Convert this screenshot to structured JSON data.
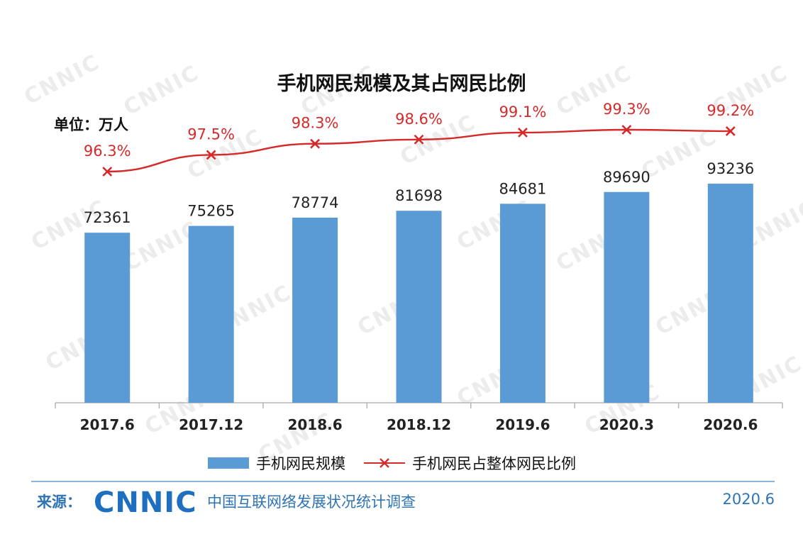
{
  "chart_data": {
    "type": "bar",
    "title": "手机网民规模及其占网民比例",
    "unit_label": "单位：万人",
    "categories": [
      "2017.6",
      "2017.12",
      "2018.6",
      "2018.12",
      "2019.6",
      "2020.3",
      "2020.6"
    ],
    "series": [
      {
        "name": "手机网民规模",
        "type": "bar",
        "values": [
          72361,
          75265,
          78774,
          81698,
          84681,
          89690,
          93236
        ],
        "labels": [
          "72361",
          "75265",
          "78774",
          "81698",
          "84681",
          "89690",
          "93236"
        ],
        "color": "#5B9BD5"
      },
      {
        "name": "手机网民占整体网民比例",
        "type": "line",
        "values": [
          96.3,
          97.5,
          98.3,
          98.6,
          99.1,
          99.3,
          99.2
        ],
        "labels": [
          "96.3%",
          "97.5%",
          "98.3%",
          "98.6%",
          "99.1%",
          "99.3%",
          "99.2%"
        ],
        "color": "#D62A2A",
        "marker": "x"
      }
    ],
    "grid": false,
    "legend_position": "bottom"
  },
  "footer": {
    "source_label": "来源：",
    "logo_text": "CNNIC",
    "source_name": "中国互联网络发展状况统计调查",
    "date": "2020.6"
  },
  "watermark": "CNNIC"
}
